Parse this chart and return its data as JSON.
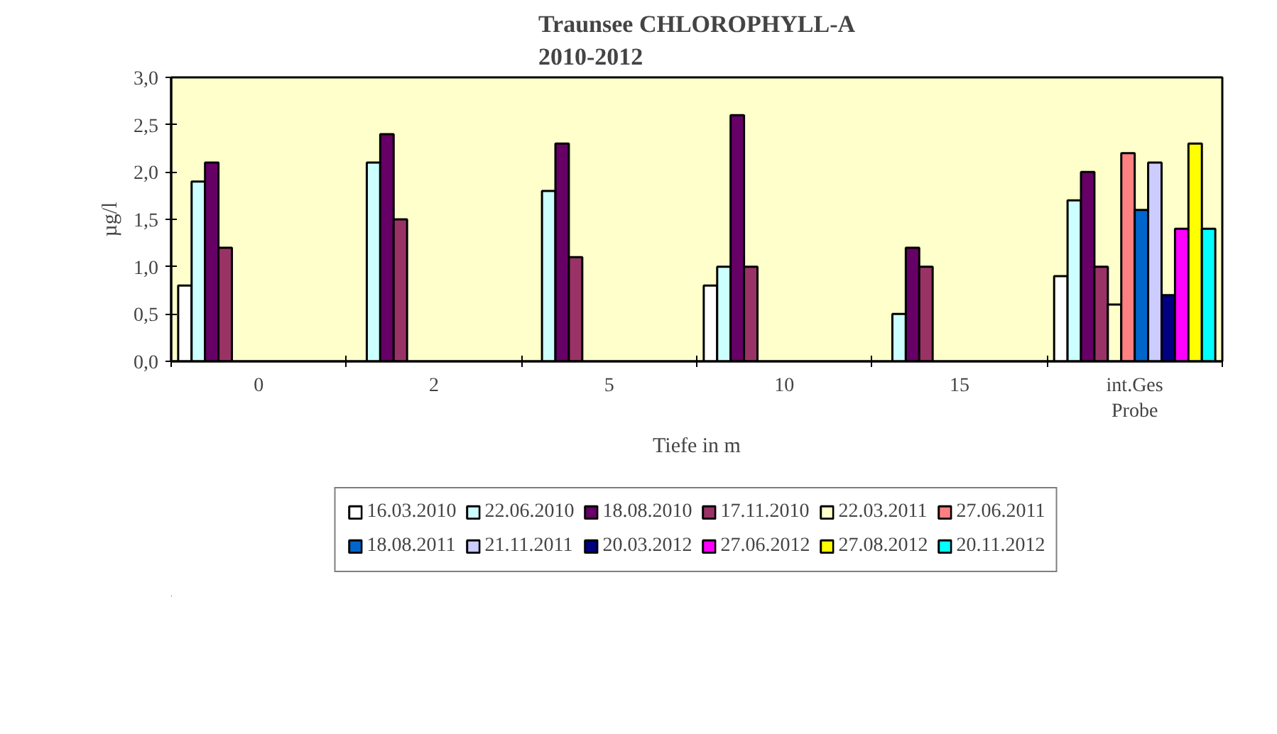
{
  "chart_data": {
    "type": "bar",
    "title": "Traunsee CHLOROPHYLL-A\n2010-2012",
    "xlabel": "Tiefe in m",
    "ylabel": "µg/l",
    "categories": [
      "0",
      "2",
      "5",
      "10",
      "15",
      "int.Ges\nProbe"
    ],
    "ylim": [
      0,
      3
    ],
    "yticks": [
      {
        "value": 0,
        "label": "0,0"
      },
      {
        "value": 0.5,
        "label": "0,5"
      },
      {
        "value": 1,
        "label": "1,0"
      },
      {
        "value": 1.5,
        "label": "1,5"
      },
      {
        "value": 2,
        "label": "2,0"
      },
      {
        "value": 2.5,
        "label": "2,5"
      },
      {
        "value": 3,
        "label": "3,0"
      }
    ],
    "grid": false,
    "legend": "bottom",
    "series": [
      {
        "name": "16.03.2010",
        "color": "#ffffff",
        "values": [
          0.8,
          null,
          null,
          0.8,
          null,
          0.9
        ]
      },
      {
        "name": "22.06.2010",
        "color": "#ccffff",
        "values": [
          1.9,
          2.1,
          1.8,
          1.0,
          0.5,
          1.7
        ]
      },
      {
        "name": "18.08.2010",
        "color": "#660066",
        "values": [
          2.1,
          2.4,
          2.3,
          2.6,
          1.2,
          2.0
        ]
      },
      {
        "name": "17.11.2010",
        "color": "#993366",
        "values": [
          1.2,
          1.5,
          1.1,
          1.0,
          1.0,
          1.0
        ]
      },
      {
        "name": "22.03.2011",
        "color": "#ffffcc",
        "values": [
          null,
          null,
          null,
          null,
          null,
          0.6
        ]
      },
      {
        "name": "27.06.2011",
        "color": "#ff8080",
        "values": [
          null,
          null,
          null,
          null,
          null,
          2.2
        ]
      },
      {
        "name": "18.08.2011",
        "color": "#0066cc",
        "values": [
          null,
          null,
          null,
          null,
          null,
          1.6
        ]
      },
      {
        "name": "21.11.2011",
        "color": "#ccccff",
        "values": [
          null,
          null,
          null,
          null,
          null,
          2.1
        ]
      },
      {
        "name": "20.03.2012",
        "color": "#000080",
        "values": [
          null,
          null,
          null,
          null,
          null,
          0.7
        ]
      },
      {
        "name": "27.06.2012",
        "color": "#ff00ff",
        "values": [
          null,
          null,
          null,
          null,
          null,
          1.4
        ]
      },
      {
        "name": "27.08.2012",
        "color": "#ffff00",
        "values": [
          null,
          null,
          null,
          null,
          null,
          2.3
        ]
      },
      {
        "name": "20.11.2012",
        "color": "#00ffff",
        "values": [
          null,
          null,
          null,
          null,
          null,
          1.4
        ]
      }
    ]
  }
}
